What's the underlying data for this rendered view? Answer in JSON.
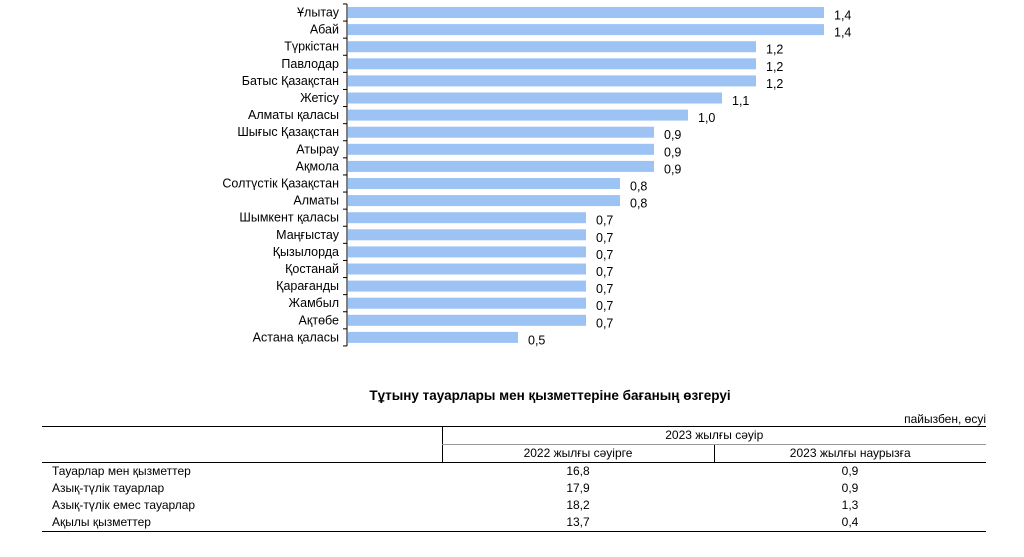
{
  "chart_data": {
    "type": "bar",
    "orientation": "horizontal",
    "categories": [
      "Ұлытау",
      "Абай",
      "Түркістан",
      "Павлодар",
      "Батыс Қазақстан",
      "Жетісу",
      "Алматы қаласы",
      "Шығыс Қазақстан",
      "Атырау",
      "Ақмола",
      "Солтүстік Қазақстан",
      "Алматы",
      "Шымкент қаласы",
      "Маңғыстау",
      "Қызылорда",
      "Қостанай",
      "Қарағанды",
      "Жамбыл",
      "Ақтөбе",
      "Астана қаласы"
    ],
    "values": [
      1.4,
      1.4,
      1.2,
      1.2,
      1.2,
      1.1,
      1.0,
      0.9,
      0.9,
      0.9,
      0.8,
      0.8,
      0.7,
      0.7,
      0.7,
      0.7,
      0.7,
      0.7,
      0.7,
      0.5
    ],
    "value_labels": [
      "1,4",
      "1,4",
      "1,2",
      "1,2",
      "1,2",
      "1,1",
      "1,0",
      "0,9",
      "0,9",
      "0,9",
      "0,8",
      "0,8",
      "0,7",
      "0,7",
      "0,7",
      "0,7",
      "0,7",
      "0,7",
      "0,7",
      "0,5"
    ],
    "bar_color": "#9dc3f5",
    "xlim": [
      0,
      1.4
    ],
    "grid": false
  },
  "table": {
    "title": "Тұтыну тауарлары мен қызметтеріне бағаның өзгеруі",
    "units": "пайызбен, өсуі",
    "group_header": "2023 жылғы сәуір",
    "col1_header": "2022 жылғы сәуірге",
    "col2_header": "2023 жылғы наурызға",
    "rows": [
      {
        "label": "Тауарлар мен қызметтер",
        "v1": "16,8",
        "v2": "0,9"
      },
      {
        "label": "Азық-түлік тауарлар",
        "v1": "17,9",
        "v2": "0,9"
      },
      {
        "label": "Азық-түлік емес тауарлар",
        "v1": "18,2",
        "v2": "1,3"
      },
      {
        "label": "Ақылы қызметтер",
        "v1": "13,7",
        "v2": "0,4"
      }
    ]
  }
}
